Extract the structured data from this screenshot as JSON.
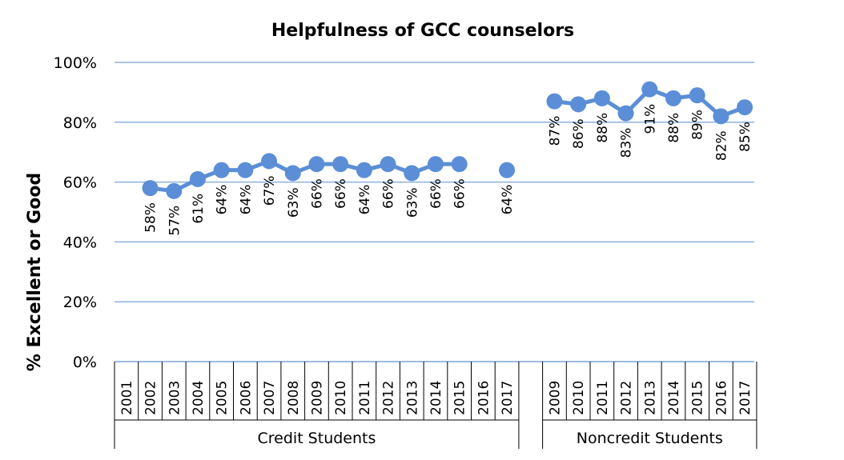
{
  "chart_data": {
    "type": "line",
    "title": "Helpfulness of GCC counselors",
    "xlabel": "",
    "ylabel": "% Excellent or Good",
    "ylim": [
      0,
      100
    ],
    "yticks": [
      "0%",
      "20%",
      "40%",
      "60%",
      "80%",
      "100%"
    ],
    "grid": true,
    "color": "#5B8ED6",
    "gridColor": "#8DB0DA",
    "groups": [
      {
        "label": "Credit Students",
        "x": [
          "2001",
          "2002",
          "2003",
          "2004",
          "2005",
          "2006",
          "2007",
          "2008",
          "2009",
          "2010",
          "2011",
          "2012",
          "2013",
          "2014",
          "2015",
          "2016",
          "2017"
        ],
        "values": [
          null,
          58,
          57,
          61,
          64,
          64,
          67,
          63,
          66,
          66,
          64,
          66,
          63,
          66,
          66,
          null,
          64
        ],
        "labels": [
          "",
          "58%",
          "57%",
          "61%",
          "64%",
          "64%",
          "67%",
          "63%",
          "66%",
          "66%",
          "64%",
          "66%",
          "63%",
          "66%",
          "66%",
          "",
          "64%"
        ]
      },
      {
        "label": "Noncredit Students",
        "x": [
          "2009",
          "2010",
          "2011",
          "2012",
          "2013",
          "2014",
          "2015",
          "2016",
          "2017"
        ],
        "values": [
          87,
          86,
          88,
          83,
          91,
          88,
          89,
          82,
          85
        ],
        "labels": [
          "87%",
          "86%",
          "88%",
          "83%",
          "91%",
          "88%",
          "89%",
          "82%",
          "85%"
        ]
      }
    ]
  }
}
